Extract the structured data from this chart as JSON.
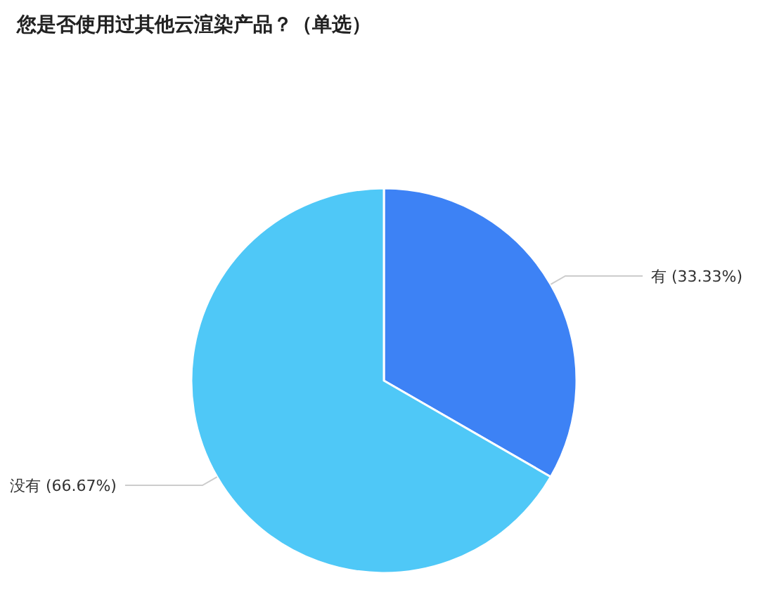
{
  "chart_data": {
    "type": "pie",
    "title": "您是否使用过其他云渲染产品？（单选）",
    "categories": [
      "有",
      "没有"
    ],
    "values": [
      33.33,
      66.67
    ],
    "colors": [
      "#3d82f5",
      "#4fc8f7"
    ],
    "value_labels": [
      "(33.33%)",
      "(66.67%)"
    ]
  }
}
